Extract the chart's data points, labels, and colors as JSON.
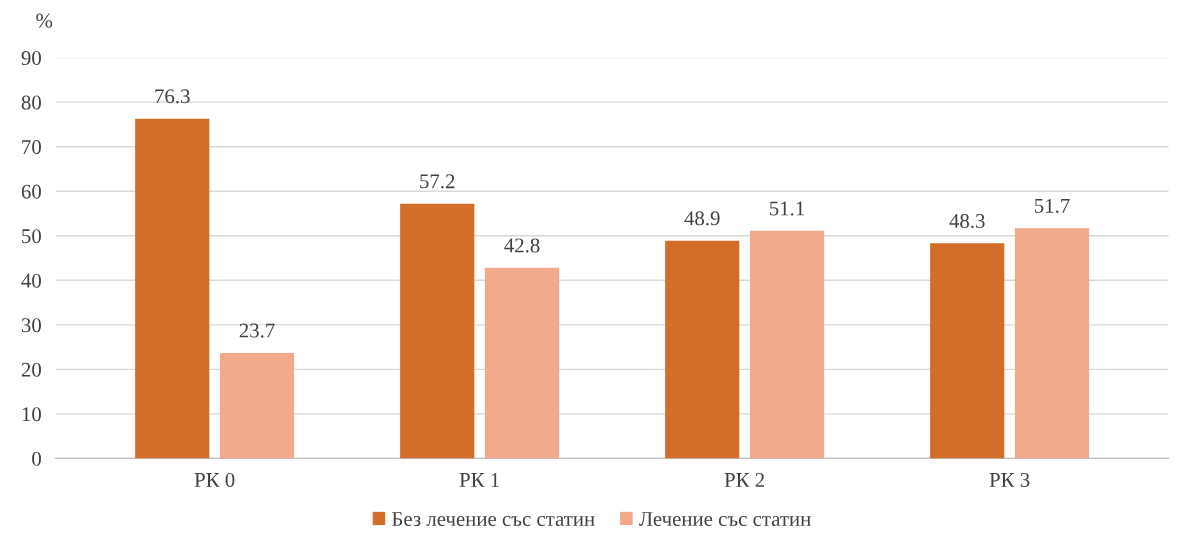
{
  "chart_data": {
    "type": "bar",
    "ylabel": "%",
    "categories": [
      "РК 0",
      "РК 1",
      "РК 2",
      "РК 3"
    ],
    "series": [
      {
        "name": "Без лечение със статин",
        "color": "#d26d2a",
        "values": [
          76.3,
          57.2,
          48.9,
          48.3
        ]
      },
      {
        "name": "Лечение със статин",
        "color": "#f0a98b",
        "values": [
          23.7,
          42.8,
          51.1,
          51.7
        ]
      }
    ],
    "ylim": [
      0,
      90
    ],
    "yticks": [
      0,
      10,
      20,
      30,
      40,
      50,
      60,
      70,
      80,
      90
    ],
    "grid": "y",
    "legend": "bottom",
    "data_labels": true
  }
}
